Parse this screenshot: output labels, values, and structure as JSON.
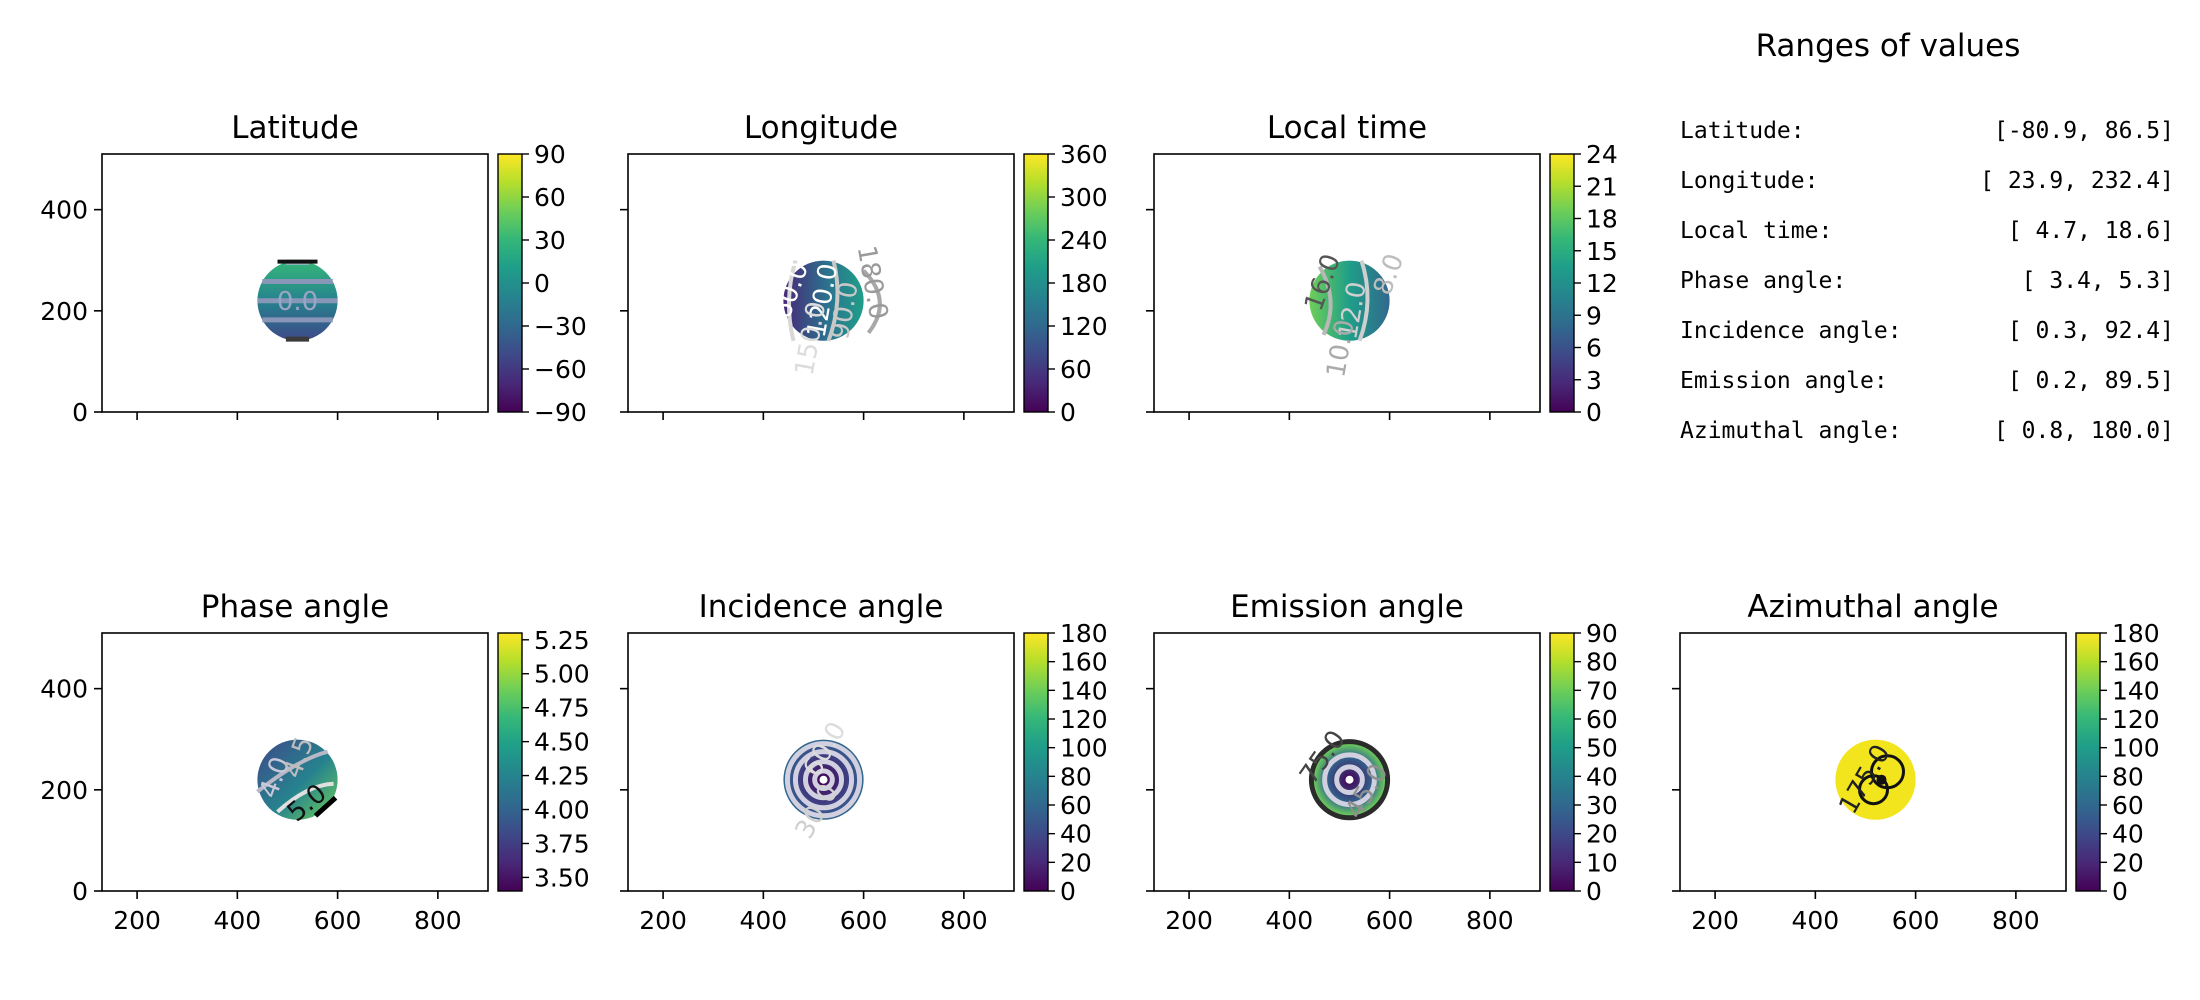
{
  "colormap_stops": [
    "#440154",
    "#482878",
    "#3e4989",
    "#31688e",
    "#26828e",
    "#1f9e89",
    "#35b779",
    "#6ece58",
    "#b5de2b",
    "#fde725"
  ],
  "chart_data": [
    {
      "type": "heatmap",
      "title": "Latitude",
      "xlim": [
        130,
        900
      ],
      "ylim": [
        0,
        510
      ],
      "x_ticks": [
        200,
        400,
        600,
        800
      ],
      "x_tick_labels_shown": false,
      "y_ticks": [
        "0",
        "200",
        "400"
      ],
      "disk_center": [
        520,
        220
      ],
      "disk_radius": 80,
      "colorbar": {
        "range": [
          -90,
          90
        ],
        "ticks": [
          "90",
          "60",
          "30",
          "0",
          "−30",
          "−60",
          "−90"
        ]
      },
      "contour_labels": [
        "0.0"
      ]
    },
    {
      "type": "heatmap",
      "title": "Longitude",
      "xlim": [
        130,
        900
      ],
      "ylim": [
        0,
        510
      ],
      "x_ticks": [
        200,
        400,
        600,
        800
      ],
      "x_tick_labels_shown": false,
      "disk_center": [
        520,
        220
      ],
      "disk_radius": 80,
      "colorbar": {
        "range": [
          0,
          360
        ],
        "ticks": [
          "360",
          "300",
          "240",
          "180",
          "120",
          "60",
          "0"
        ]
      },
      "contour_labels": [
        "60.0",
        "120.0",
        "180.0",
        "150.0",
        "90.0"
      ]
    },
    {
      "type": "heatmap",
      "title": "Local time",
      "xlim": [
        130,
        900
      ],
      "ylim": [
        0,
        510
      ],
      "x_ticks": [
        200,
        400,
        600,
        800
      ],
      "x_tick_labels_shown": false,
      "disk_center": [
        520,
        220
      ],
      "disk_radius": 80,
      "colorbar": {
        "range": [
          0,
          24
        ],
        "ticks": [
          "24",
          "21",
          "18",
          "15",
          "12",
          "9",
          "6",
          "3",
          "0"
        ]
      },
      "contour_labels": [
        "16.0",
        "12.0",
        "10.0",
        "8.0"
      ]
    },
    {
      "type": "heatmap",
      "title": "Phase angle",
      "xlim": [
        130,
        900
      ],
      "ylim": [
        0,
        510
      ],
      "x_ticks": [
        "200",
        "400",
        "600",
        "800"
      ],
      "y_ticks": [
        "0",
        "200",
        "400"
      ],
      "disk_center": [
        520,
        220
      ],
      "disk_radius": 80,
      "colorbar": {
        "range": [
          3.4,
          5.3
        ],
        "ticks": [
          "5.25",
          "5.00",
          "4.75",
          "4.50",
          "4.25",
          "4.00",
          "3.75",
          "3.50"
        ]
      },
      "contour_labels": [
        "4.0",
        "4.5",
        "5.0"
      ]
    },
    {
      "type": "heatmap",
      "title": "Incidence angle",
      "xlim": [
        130,
        900
      ],
      "ylim": [
        0,
        510
      ],
      "x_ticks": [
        "200",
        "400",
        "600",
        "800"
      ],
      "disk_center": [
        520,
        220
      ],
      "disk_radius": 80,
      "colorbar": {
        "range": [
          0,
          180
        ],
        "ticks": [
          "180",
          "160",
          "140",
          "120",
          "100",
          "80",
          "60",
          "40",
          "20",
          "0"
        ]
      },
      "contour_labels": [
        "60.0",
        "30.0"
      ]
    },
    {
      "type": "heatmap",
      "title": "Emission angle",
      "xlim": [
        130,
        900
      ],
      "ylim": [
        0,
        510
      ],
      "x_ticks": [
        "200",
        "400",
        "600",
        "800"
      ],
      "disk_center": [
        520,
        220
      ],
      "disk_radius": 80,
      "colorbar": {
        "range": [
          0,
          90
        ],
        "ticks": [
          "90",
          "80",
          "70",
          "60",
          "50",
          "40",
          "30",
          "20",
          "10",
          "0"
        ]
      },
      "contour_labels": [
        "75.0",
        "45.0"
      ]
    },
    {
      "type": "heatmap",
      "title": "Azimuthal angle",
      "xlim": [
        130,
        900
      ],
      "ylim": [
        0,
        510
      ],
      "x_ticks": [
        "200",
        "400",
        "600",
        "800"
      ],
      "disk_center": [
        520,
        220
      ],
      "disk_radius": 80,
      "colorbar": {
        "range": [
          0,
          180
        ],
        "ticks": [
          "180",
          "160",
          "140",
          "120",
          "100",
          "80",
          "60",
          "40",
          "20",
          "0"
        ]
      },
      "contour_labels": [
        "175.0"
      ]
    }
  ],
  "ranges_panel": {
    "title": "Ranges of values",
    "rows": [
      {
        "label": "Latitude:",
        "value": "[-80.9,  86.5]"
      },
      {
        "label": "Longitude:",
        "value": "[ 23.9, 232.4]"
      },
      {
        "label": "Local time:",
        "value": "[  4.7,  18.6]"
      },
      {
        "label": "Phase angle:",
        "value": "[  3.4,   5.3]"
      },
      {
        "label": "Incidence angle:",
        "value": "[  0.3,  92.4]"
      },
      {
        "label": "Emission angle:",
        "value": "[  0.2,  89.5]"
      },
      {
        "label": "Azimuthal angle:",
        "value": "[  0.8, 180.0]"
      }
    ]
  }
}
